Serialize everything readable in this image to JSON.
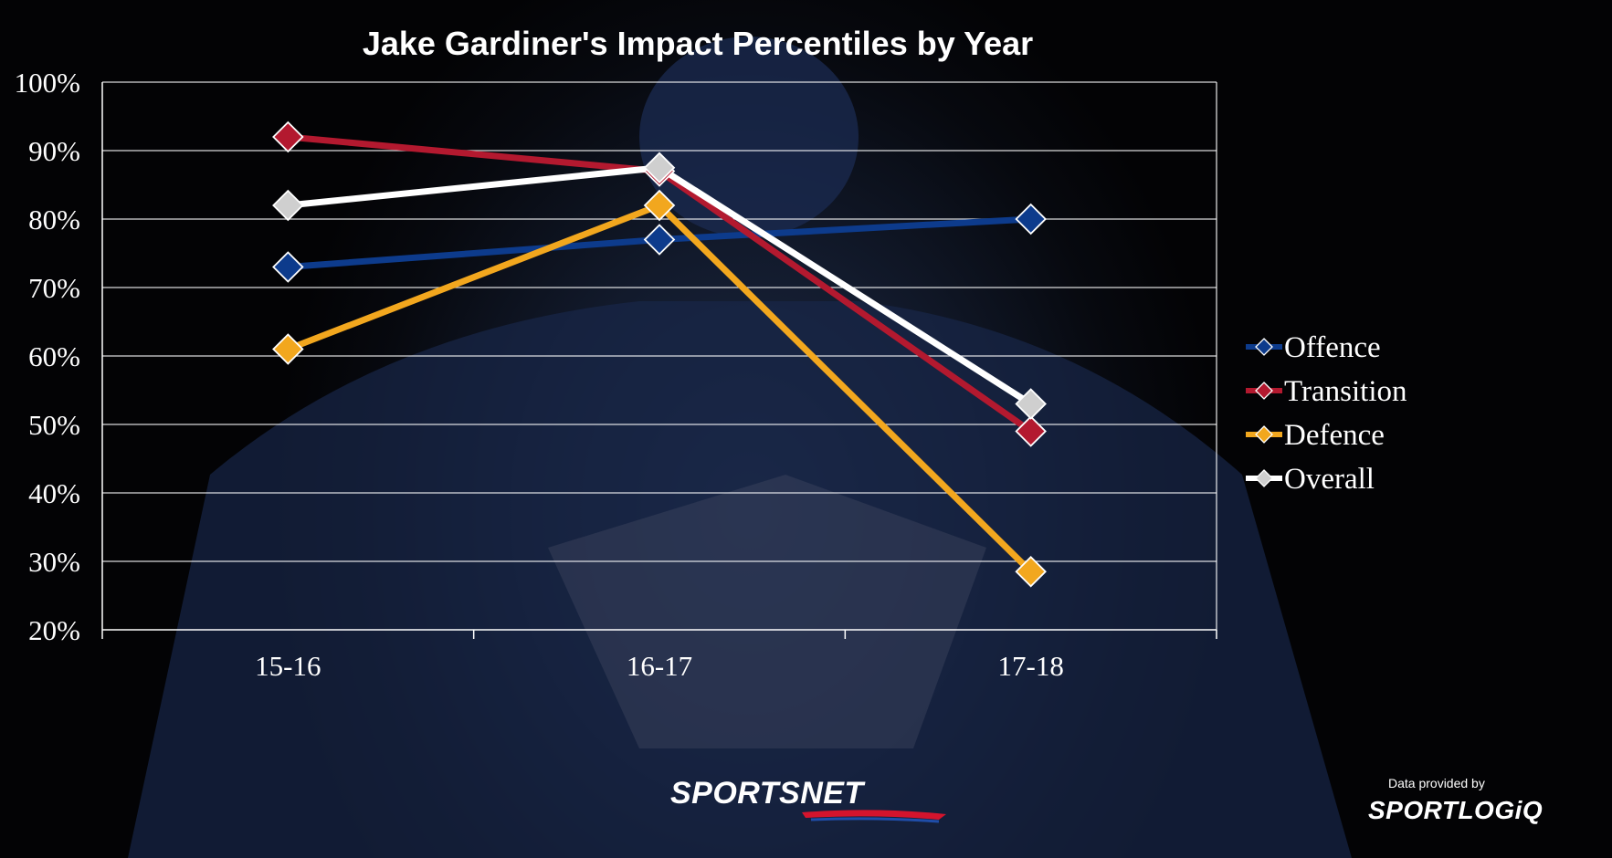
{
  "chart_data": {
    "type": "line",
    "title": "Jake Gardiner's Impact Percentiles by Year",
    "categories": [
      "15-16",
      "16-17",
      "17-18"
    ],
    "y_ticks": [
      "20%",
      "30%",
      "40%",
      "50%",
      "60%",
      "70%",
      "80%",
      "90%",
      "100%"
    ],
    "ylim": [
      20,
      100
    ],
    "unit": "%",
    "grid": true,
    "legend_position": "right",
    "series": [
      {
        "name": "Offence",
        "values": [
          73,
          77,
          80
        ],
        "color": "#0d3b8c"
      },
      {
        "name": "Transition",
        "values": [
          92,
          87,
          49
        ],
        "color": "#b3192f"
      },
      {
        "name": "Defence",
        "values": [
          61,
          82,
          28.5
        ],
        "color": "#f2a71e"
      },
      {
        "name": "Overall",
        "values": [
          82,
          87.5,
          53
        ],
        "color": "#ffffff",
        "marker_color": "#cfcfcf"
      }
    ]
  },
  "branding": {
    "logo_text": "SPORTSNET",
    "credit_text": "Data provided by",
    "credit_logo": "SPORTLOGiQ"
  }
}
